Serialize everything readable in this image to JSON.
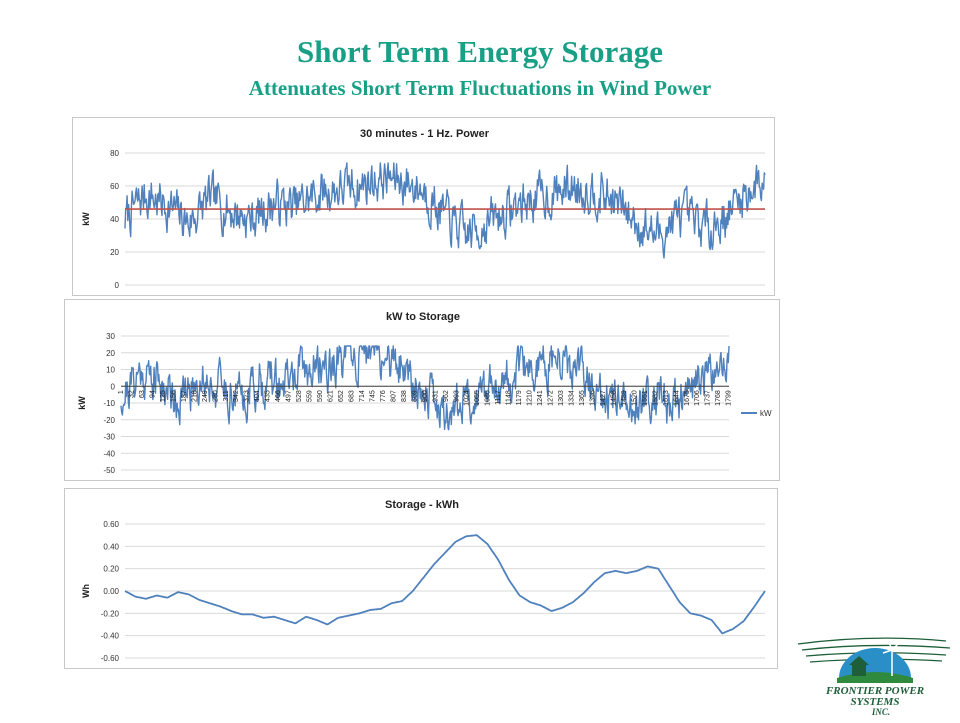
{
  "slide": {
    "title": "Short Term Energy Storage",
    "subtitle": "Attenuates Short Term Fluctuations in Wind Power"
  },
  "logo": {
    "line1": "FRONTIER POWER",
    "line2": "SYSTEMS",
    "line3": "INC."
  },
  "colors": {
    "series": "#4f81bd",
    "mean": "#c0504d",
    "grid": "#d9d9d9",
    "axis": "#404040",
    "accent": "#17a085",
    "logo_green": "#1e5f3a"
  },
  "chart_data": [
    {
      "id": "power",
      "type": "line",
      "title": "30 minutes - 1 Hz. Power",
      "xlabel": "",
      "ylabel": "kW",
      "x_range": [
        1,
        1800
      ],
      "ylim": [
        0,
        80
      ],
      "yticks": [
        "0",
        "20",
        "40",
        "60",
        "80"
      ],
      "grid": true,
      "legend": "none",
      "mean_line": 46,
      "series": [
        {
          "x": [
            1,
            60,
            120,
            180,
            240,
            300,
            360,
            420,
            480,
            540,
            600,
            660,
            720,
            780,
            840,
            900,
            960,
            1020,
            1080,
            1140,
            1200,
            1260,
            1320,
            1380,
            1440,
            1500,
            1560,
            1620,
            1680,
            1740,
            1800
          ],
          "values": [
            40,
            55,
            48,
            38,
            52,
            45,
            40,
            50,
            47,
            55,
            58,
            60,
            65,
            63,
            58,
            42,
            30,
            38,
            45,
            52,
            55,
            60,
            58,
            50,
            38,
            30,
            42,
            35,
            40,
            55,
            65
          ]
        }
      ]
    },
    {
      "id": "storage_kw",
      "type": "line",
      "title": "kW to Storage",
      "xlabel": "",
      "ylabel": "kW",
      "x_range": [
        1,
        1800
      ],
      "ylim": [
        -50,
        30
      ],
      "yticks": [
        "-50",
        "-40",
        "-30",
        "-20",
        "-10",
        "0",
        "10",
        "20",
        "30"
      ],
      "xticks": [
        "1",
        "32",
        "63",
        "94",
        "125",
        "156",
        "187",
        "218",
        "249",
        "280",
        "311",
        "342",
        "373",
        "404",
        "435",
        "466",
        "497",
        "528",
        "559",
        "590",
        "621",
        "652",
        "683",
        "714",
        "745",
        "776",
        "807",
        "838",
        "869",
        "900",
        "931",
        "962",
        "993",
        "1024",
        "1055",
        "1086",
        "1117",
        "1148",
        "1179",
        "1210",
        "1241",
        "1272",
        "1303",
        "1334",
        "1365",
        "1396",
        "1427",
        "1458",
        "1489",
        "1520",
        "1551",
        "1582",
        "1613",
        "1644",
        "1675",
        "1706",
        "1737",
        "1768",
        "1799"
      ],
      "grid": true,
      "legend": "right",
      "series": [
        {
          "name": "kW",
          "x": [
            1,
            60,
            120,
            180,
            240,
            300,
            360,
            420,
            480,
            540,
            600,
            660,
            720,
            780,
            840,
            900,
            960,
            1020,
            1080,
            1140,
            1200,
            1260,
            1320,
            1380,
            1440,
            1500,
            1560,
            1620,
            1680,
            1740,
            1800
          ],
          "values": [
            -6,
            9,
            2,
            -8,
            6,
            -1,
            -6,
            4,
            1,
            9,
            12,
            14,
            19,
            17,
            12,
            -4,
            -16,
            -8,
            -1,
            6,
            9,
            14,
            12,
            4,
            -8,
            -16,
            -4,
            -11,
            -6,
            9,
            19
          ]
        }
      ]
    },
    {
      "id": "storage_kwh",
      "type": "line",
      "title": "Storage - kWh",
      "xlabel": "",
      "ylabel": "Wh",
      "x_range": [
        1,
        1800
      ],
      "ylim": [
        -0.6,
        0.6
      ],
      "yticks": [
        "-0.60",
        "-0.40",
        "-0.20",
        "0.00",
        "0.20",
        "0.40",
        "0.60"
      ],
      "grid": true,
      "legend": "none",
      "series": [
        {
          "x": [
            1,
            30,
            60,
            90,
            120,
            150,
            180,
            210,
            240,
            270,
            300,
            330,
            360,
            390,
            420,
            450,
            480,
            510,
            540,
            570,
            600,
            630,
            660,
            690,
            720,
            750,
            780,
            810,
            840,
            870,
            900,
            930,
            960,
            990,
            1020,
            1050,
            1080,
            1110,
            1140,
            1170,
            1200,
            1230,
            1260,
            1290,
            1320,
            1350,
            1380,
            1410,
            1440,
            1470,
            1500,
            1530,
            1560,
            1590,
            1620,
            1650,
            1680,
            1710,
            1740,
            1770,
            1800
          ],
          "values": [
            0.0,
            -0.05,
            -0.07,
            -0.04,
            -0.06,
            -0.01,
            -0.03,
            -0.08,
            -0.11,
            -0.14,
            -0.18,
            -0.21,
            -0.21,
            -0.24,
            -0.23,
            -0.26,
            -0.29,
            -0.23,
            -0.26,
            -0.3,
            -0.24,
            -0.22,
            -0.2,
            -0.17,
            -0.16,
            -0.11,
            -0.09,
            0.0,
            0.12,
            0.24,
            0.34,
            0.44,
            0.49,
            0.5,
            0.42,
            0.28,
            0.1,
            -0.04,
            -0.1,
            -0.13,
            -0.18,
            -0.15,
            -0.1,
            -0.02,
            0.08,
            0.16,
            0.18,
            0.16,
            0.18,
            0.22,
            0.2,
            0.05,
            -0.1,
            -0.2,
            -0.22,
            -0.26,
            -0.38,
            -0.34,
            -0.27,
            -0.14,
            0.0
          ]
        }
      ]
    }
  ]
}
